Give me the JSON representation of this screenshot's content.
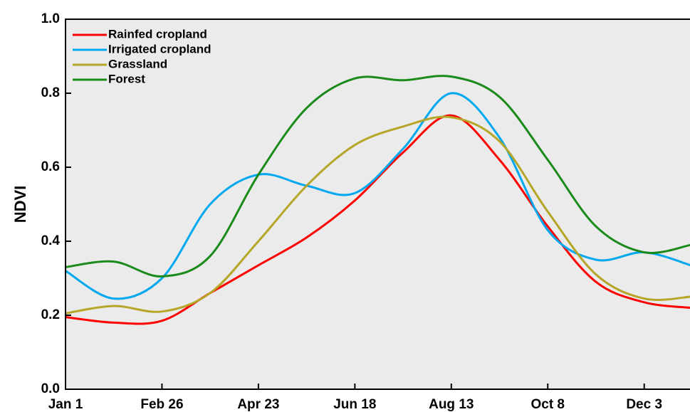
{
  "chart_data": {
    "type": "line",
    "y_label": "NDVI",
    "x": [
      1,
      29,
      57,
      85,
      113,
      141,
      169,
      197,
      225,
      253,
      281,
      309,
      337,
      364
    ],
    "xlim": [
      1,
      364
    ],
    "xticks": [
      {
        "value": 1,
        "label": "Jan 1"
      },
      {
        "value": 57,
        "label": "Feb 26"
      },
      {
        "value": 113,
        "label": "Apr 23"
      },
      {
        "value": 169,
        "label": "Jun 18"
      },
      {
        "value": 225,
        "label": "Aug 13"
      },
      {
        "value": 281,
        "label": "Oct 8"
      },
      {
        "value": 337,
        "label": "Dec 3"
      }
    ],
    "ylim": [
      0,
      1
    ],
    "yticks": [
      {
        "value": 0,
        "label": "0.0"
      },
      0.2,
      0.4,
      0.6,
      0.8,
      {
        "value": 1,
        "label": "1.0"
      }
    ],
    "legend": "top-left",
    "series": [
      {
        "name": "Rainfed cropland",
        "color": "#ff0000",
        "values": [
          0.195,
          0.18,
          0.185,
          0.26,
          0.335,
          0.41,
          0.51,
          0.64,
          0.74,
          0.62,
          0.44,
          0.29,
          0.235,
          0.22
        ]
      },
      {
        "name": "Irrigated cropland",
        "color": "#00a8f0",
        "values": [
          0.32,
          0.245,
          0.3,
          0.5,
          0.58,
          0.55,
          0.53,
          0.65,
          0.8,
          0.68,
          0.43,
          0.35,
          0.37,
          0.335
        ]
      },
      {
        "name": "Grassland",
        "color": "#b5a628",
        "values": [
          0.205,
          0.225,
          0.21,
          0.26,
          0.4,
          0.55,
          0.66,
          0.71,
          0.735,
          0.67,
          0.48,
          0.31,
          0.245,
          0.25
        ]
      },
      {
        "name": "Forest",
        "color": "#1a8a1a",
        "values": [
          0.33,
          0.345,
          0.305,
          0.36,
          0.58,
          0.76,
          0.84,
          0.835,
          0.845,
          0.79,
          0.62,
          0.44,
          0.37,
          0.39
        ]
      }
    ]
  }
}
